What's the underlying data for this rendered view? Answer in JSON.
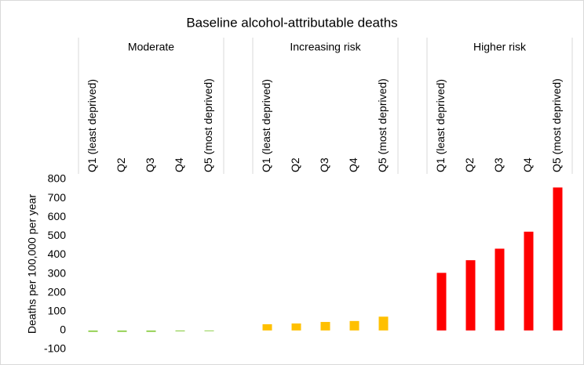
{
  "chart_data": {
    "type": "bar",
    "title": "Baseline alcohol-attributable deaths",
    "y_label": "Deaths per 100,000 per year",
    "ylim": [
      -100,
      800
    ],
    "yticks": [
      -100,
      0,
      100,
      200,
      300,
      400,
      500,
      600,
      700,
      800
    ],
    "groups": [
      {
        "name": "Moderate",
        "color": "#92d050",
        "categories": [
          "Q1 (least deprived)",
          "Q2",
          "Q3",
          "Q4",
          "Q5 (most deprived)"
        ],
        "values": [
          -8,
          -8,
          -8,
          -5,
          -4
        ]
      },
      {
        "name": "Increasing risk",
        "color": "#ffc000",
        "categories": [
          "Q1 (least deprived)",
          "Q2",
          "Q3",
          "Q4",
          "Q5 (most deprived)"
        ],
        "values": [
          33,
          37,
          45,
          50,
          73
        ]
      },
      {
        "name": "Higher risk",
        "color": "#ff0000",
        "categories": [
          "Q1 (least deprived)",
          "Q2",
          "Q3",
          "Q4",
          "Q5 (most deprived)"
        ],
        "values": [
          305,
          372,
          433,
          523,
          757
        ]
      }
    ]
  }
}
